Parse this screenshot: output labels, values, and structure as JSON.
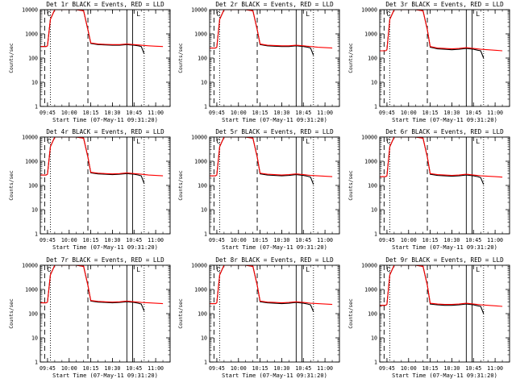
{
  "chart_data": {
    "type": "line",
    "xlabel": "Start Time (07-May-11 09:31:20)",
    "ylabel": "Counts/sec",
    "y_scale": "log",
    "ylim": [
      1,
      10000
    ],
    "xlim": [
      "09:40",
      "11:10"
    ],
    "x_tick_labels": [
      "09:45",
      "10:00",
      "10:15",
      "10:30",
      "10:45",
      "11:00"
    ],
    "y_tick_labels": [
      "1",
      "10",
      "100",
      "1000",
      "10000"
    ],
    "legend": {
      "series": [
        "Events",
        "LLD"
      ],
      "colors": [
        "#000000",
        "#ff0000"
      ],
      "placement": "in title"
    },
    "panels": [
      {
        "title": "Det 1r BLACK = Events, RED = LLD",
        "series": [
          {
            "name": "Events",
            "color": "#000000",
            "x": [
              "09:40",
              "09:44",
              "09:45",
              "09:47",
              "09:50",
              "10:00",
              "10:05",
              "10:10",
              "10:13",
              "10:15",
              "10:20",
              "10:25",
              "10:30",
              "10:35",
              "10:40",
              "10:45",
              "10:48",
              "10:50",
              "10:52"
            ],
            "values": [
              300,
              300,
              320,
              4000,
              10000,
              10000,
              10000,
              9000,
              1500,
              400,
              360,
              350,
              340,
              340,
              360,
              340,
              320,
              300,
              150
            ]
          },
          {
            "name": "LLD",
            "color": "#ff0000",
            "x": [
              "09:40",
              "09:44",
              "09:45",
              "09:47",
              "09:50",
              "10:00",
              "10:05",
              "10:10",
              "10:13",
              "10:15",
              "10:20",
              "10:25",
              "10:30",
              "10:35",
              "10:40",
              "10:45",
              "10:50",
              "10:55",
              "11:00",
              "11:05"
            ],
            "values": [
              300,
              300,
              320,
              4000,
              10000,
              10000,
              10000,
              9000,
              1500,
              420,
              380,
              370,
              360,
              360,
              380,
              360,
              340,
              320,
              310,
              300
            ]
          }
        ]
      },
      {
        "title": "Det 2r BLACK = Events, RED = LLD",
        "series": [
          {
            "name": "Events",
            "color": "#000000",
            "x": [
              "09:40",
              "09:44",
              "09:45",
              "09:47",
              "09:50",
              "10:00",
              "10:05",
              "10:10",
              "10:13",
              "10:15",
              "10:20",
              "10:25",
              "10:30",
              "10:35",
              "10:40",
              "10:45",
              "10:48",
              "10:50",
              "10:52"
            ],
            "values": [
              260,
              260,
              280,
              4000,
              10000,
              10000,
              10000,
              9000,
              1500,
              360,
              320,
              310,
              300,
              300,
              320,
              300,
              280,
              260,
              130
            ]
          },
          {
            "name": "LLD",
            "color": "#ff0000",
            "x": [
              "09:40",
              "09:44",
              "09:45",
              "09:47",
              "09:50",
              "10:00",
              "10:05",
              "10:10",
              "10:13",
              "10:15",
              "10:20",
              "10:25",
              "10:30",
              "10:35",
              "10:40",
              "10:45",
              "10:50",
              "10:55",
              "11:00",
              "11:05"
            ],
            "values": [
              260,
              260,
              280,
              4000,
              10000,
              10000,
              10000,
              9000,
              1500,
              380,
              340,
              330,
              320,
              320,
              340,
              320,
              300,
              280,
              270,
              260
            ]
          }
        ]
      },
      {
        "title": "Det 3r BLACK = Events, RED = LLD",
        "series": [
          {
            "name": "Events",
            "color": "#000000",
            "x": [
              "09:40",
              "09:44",
              "09:45",
              "09:47",
              "09:50",
              "10:00",
              "10:05",
              "10:10",
              "10:13",
              "10:15",
              "10:20",
              "10:25",
              "10:30",
              "10:35",
              "10:40",
              "10:45",
              "10:48",
              "10:50",
              "10:52"
            ],
            "values": [
              200,
              200,
              220,
              4000,
              10000,
              10000,
              10000,
              9000,
              1500,
              280,
              240,
              230,
              220,
              230,
              250,
              230,
              210,
              200,
              100
            ]
          },
          {
            "name": "LLD",
            "color": "#ff0000",
            "x": [
              "09:40",
              "09:44",
              "09:45",
              "09:47",
              "09:50",
              "10:00",
              "10:05",
              "10:10",
              "10:13",
              "10:15",
              "10:20",
              "10:25",
              "10:30",
              "10:35",
              "10:40",
              "10:45",
              "10:50",
              "10:55",
              "11:00",
              "11:05"
            ],
            "values": [
              200,
              200,
              220,
              4000,
              10000,
              10000,
              10000,
              9000,
              1500,
              300,
              260,
              250,
              240,
              250,
              270,
              250,
              230,
              220,
              210,
              200
            ]
          }
        ]
      },
      {
        "title": "Det 4r BLACK = Events, RED = LLD",
        "series": [
          {
            "name": "Events",
            "color": "#000000",
            "x": [
              "09:40",
              "09:44",
              "09:45",
              "09:47",
              "09:50",
              "10:00",
              "10:05",
              "10:10",
              "10:13",
              "10:15",
              "10:20",
              "10:25",
              "10:30",
              "10:35",
              "10:40",
              "10:45",
              "10:48",
              "10:50",
              "10:52"
            ],
            "values": [
              270,
              270,
              290,
              4000,
              10000,
              10000,
              10000,
              9000,
              1500,
              330,
              300,
              290,
              280,
              290,
              310,
              290,
              270,
              250,
              120
            ]
          },
          {
            "name": "LLD",
            "color": "#ff0000",
            "x": [
              "09:40",
              "09:44",
              "09:45",
              "09:47",
              "09:50",
              "10:00",
              "10:05",
              "10:10",
              "10:13",
              "10:15",
              "10:20",
              "10:25",
              "10:30",
              "10:35",
              "10:40",
              "10:45",
              "10:50",
              "10:55",
              "11:00",
              "11:05"
            ],
            "values": [
              270,
              270,
              290,
              4000,
              10000,
              10000,
              10000,
              9000,
              1500,
              350,
              320,
              310,
              300,
              310,
              330,
              310,
              290,
              270,
              260,
              250
            ]
          }
        ]
      },
      {
        "title": "Det 5r BLACK = Events, RED = LLD",
        "series": [
          {
            "name": "Events",
            "color": "#000000",
            "x": [
              "09:40",
              "09:44",
              "09:45",
              "09:47",
              "09:50",
              "10:00",
              "10:05",
              "10:10",
              "10:13",
              "10:15",
              "10:20",
              "10:25",
              "10:30",
              "10:35",
              "10:40",
              "10:45",
              "10:48",
              "10:50",
              "10:52"
            ],
            "values": [
              250,
              250,
              270,
              4000,
              10000,
              10000,
              10000,
              9000,
              1500,
              300,
              270,
              260,
              250,
              260,
              280,
              260,
              240,
              220,
              110
            ]
          },
          {
            "name": "LLD",
            "color": "#ff0000",
            "x": [
              "09:40",
              "09:44",
              "09:45",
              "09:47",
              "09:50",
              "10:00",
              "10:05",
              "10:10",
              "10:13",
              "10:15",
              "10:20",
              "10:25",
              "10:30",
              "10:35",
              "10:40",
              "10:45",
              "10:50",
              "10:55",
              "11:00",
              "11:05"
            ],
            "values": [
              250,
              250,
              270,
              4000,
              10000,
              10000,
              10000,
              9000,
              1500,
              320,
              290,
              280,
              270,
              280,
              300,
              280,
              260,
              250,
              240,
              230
            ]
          }
        ]
      },
      {
        "title": "Det 6r BLACK = Events, RED = LLD",
        "series": [
          {
            "name": "Events",
            "color": "#000000",
            "x": [
              "09:40",
              "09:44",
              "09:45",
              "09:47",
              "09:50",
              "10:00",
              "10:05",
              "10:10",
              "10:13",
              "10:15",
              "10:20",
              "10:25",
              "10:30",
              "10:35",
              "10:40",
              "10:45",
              "10:48",
              "10:50",
              "10:52"
            ],
            "values": [
              230,
              230,
              250,
              4000,
              10000,
              10000,
              10000,
              9000,
              1500,
              290,
              260,
              250,
              240,
              250,
              270,
              250,
              230,
              210,
              110
            ]
          },
          {
            "name": "LLD",
            "color": "#ff0000",
            "x": [
              "09:40",
              "09:44",
              "09:45",
              "09:47",
              "09:50",
              "10:00",
              "10:05",
              "10:10",
              "10:13",
              "10:15",
              "10:20",
              "10:25",
              "10:30",
              "10:35",
              "10:40",
              "10:45",
              "10:50",
              "10:55",
              "11:00",
              "11:05"
            ],
            "values": [
              230,
              230,
              250,
              4000,
              10000,
              10000,
              10000,
              9000,
              1500,
              310,
              280,
              270,
              260,
              270,
              290,
              270,
              250,
              240,
              230,
              220
            ]
          }
        ]
      },
      {
        "title": "Det 7r BLACK = Events, RED = LLD",
        "series": [
          {
            "name": "Events",
            "color": "#000000",
            "x": [
              "09:40",
              "09:44",
              "09:45",
              "09:47",
              "09:50",
              "10:00",
              "10:05",
              "10:10",
              "10:13",
              "10:15",
              "10:20",
              "10:25",
              "10:30",
              "10:35",
              "10:40",
              "10:45",
              "10:48",
              "10:50",
              "10:52"
            ],
            "values": [
              280,
              280,
              300,
              4000,
              10000,
              10000,
              10000,
              9000,
              1500,
              330,
              300,
              290,
              280,
              290,
              310,
              290,
              270,
              250,
              130
            ]
          },
          {
            "name": "LLD",
            "color": "#ff0000",
            "x": [
              "09:40",
              "09:44",
              "09:45",
              "09:47",
              "09:50",
              "10:00",
              "10:05",
              "10:10",
              "10:13",
              "10:15",
              "10:20",
              "10:25",
              "10:30",
              "10:35",
              "10:40",
              "10:45",
              "10:50",
              "10:55",
              "11:00",
              "11:05"
            ],
            "values": [
              280,
              280,
              300,
              4000,
              10000,
              10000,
              10000,
              9000,
              1500,
              350,
              320,
              310,
              300,
              310,
              330,
              310,
              290,
              280,
              270,
              260
            ]
          }
        ]
      },
      {
        "title": "Det 8r BLACK = Events, RED = LLD",
        "series": [
          {
            "name": "Events",
            "color": "#000000",
            "x": [
              "09:40",
              "09:44",
              "09:45",
              "09:47",
              "09:50",
              "10:00",
              "10:05",
              "10:10",
              "10:13",
              "10:15",
              "10:20",
              "10:25",
              "10:30",
              "10:35",
              "10:40",
              "10:45",
              "10:48",
              "10:50",
              "10:52"
            ],
            "values": [
              260,
              260,
              280,
              4000,
              10000,
              10000,
              10000,
              9000,
              1500,
              310,
              280,
              270,
              260,
              270,
              290,
              270,
              250,
              230,
              120
            ]
          },
          {
            "name": "LLD",
            "color": "#ff0000",
            "x": [
              "09:40",
              "09:44",
              "09:45",
              "09:47",
              "09:50",
              "10:00",
              "10:05",
              "10:10",
              "10:13",
              "10:15",
              "10:20",
              "10:25",
              "10:30",
              "10:35",
              "10:40",
              "10:45",
              "10:50",
              "10:55",
              "11:00",
              "11:05"
            ],
            "values": [
              260,
              260,
              280,
              4000,
              10000,
              10000,
              10000,
              9000,
              1500,
              330,
              300,
              290,
              280,
              290,
              310,
              290,
              270,
              260,
              250,
              240
            ]
          }
        ]
      },
      {
        "title": "Det 9r BLACK = Events, RED = LLD",
        "series": [
          {
            "name": "Events",
            "color": "#000000",
            "x": [
              "09:40",
              "09:44",
              "09:45",
              "09:47",
              "09:50",
              "10:00",
              "10:05",
              "10:10",
              "10:13",
              "10:15",
              "10:20",
              "10:25",
              "10:30",
              "10:35",
              "10:40",
              "10:45",
              "10:48",
              "10:50",
              "10:52"
            ],
            "values": [
              220,
              220,
              240,
              4000,
              10000,
              10000,
              10000,
              9000,
              1500,
              250,
              230,
              220,
              220,
              230,
              250,
              230,
              210,
              200,
              100
            ]
          },
          {
            "name": "LLD",
            "color": "#ff0000",
            "x": [
              "09:40",
              "09:44",
              "09:45",
              "09:47",
              "09:50",
              "10:00",
              "10:05",
              "10:10",
              "10:13",
              "10:15",
              "10:20",
              "10:25",
              "10:30",
              "10:35",
              "10:40",
              "10:45",
              "10:50",
              "10:55",
              "11:00",
              "11:05"
            ],
            "values": [
              220,
              220,
              240,
              4000,
              10000,
              10000,
              10000,
              9000,
              1500,
              270,
              250,
              240,
              240,
              250,
              270,
              250,
              230,
              220,
              210,
              200
            ]
          }
        ]
      }
    ],
    "vertical_markers": [
      {
        "style": "dashed",
        "x": "09:43"
      },
      {
        "style": "dotted",
        "x": "09:47"
      },
      {
        "style": "dashed",
        "x": "10:13"
      },
      {
        "style": "solid",
        "x": "10:40"
      },
      {
        "style": "solid",
        "x": "10:44"
      },
      {
        "style": "dotted",
        "x": "10:52"
      }
    ],
    "markers": [
      {
        "glyph": "C",
        "x": "09:46"
      },
      {
        "glyph": "L",
        "x": "10:48"
      }
    ],
    "grid": false
  }
}
